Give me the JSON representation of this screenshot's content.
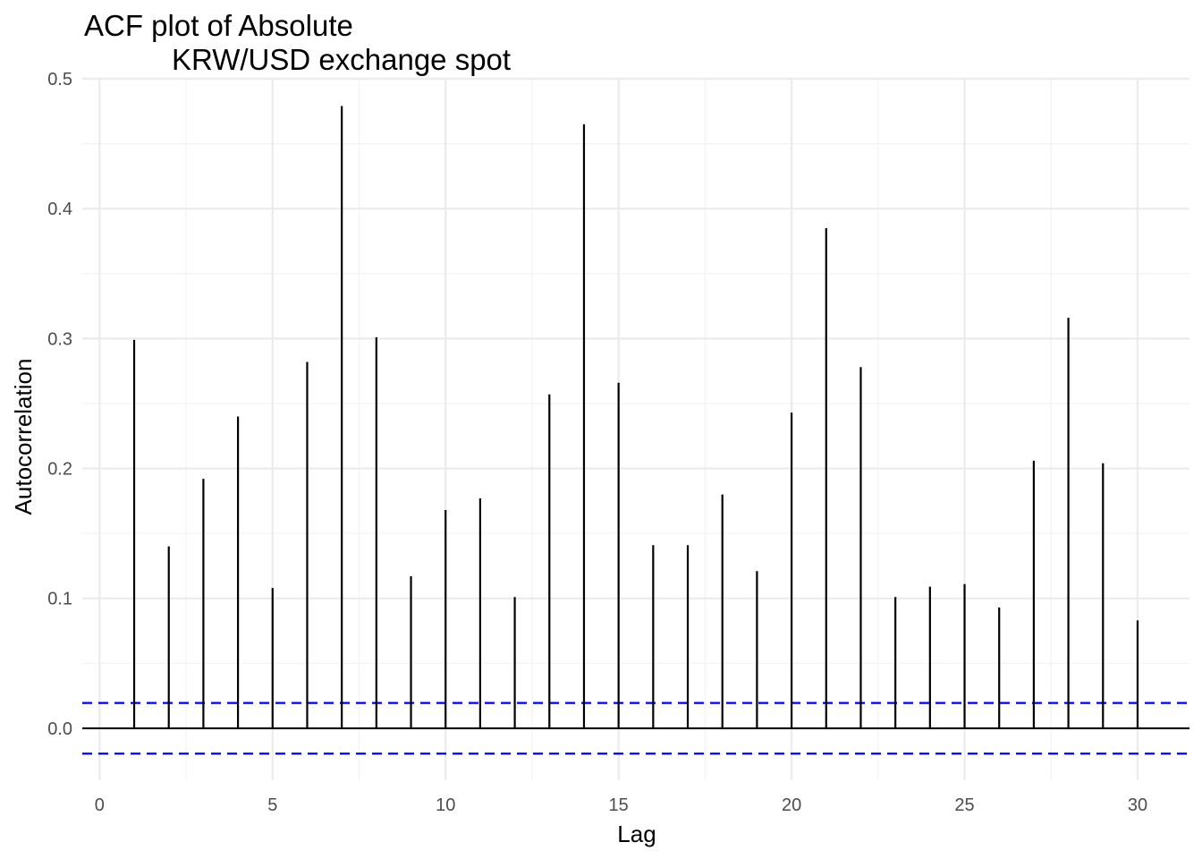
{
  "chart_data": {
    "type": "bar",
    "title_lines": [
      "ACF plot of Absolute",
      "KRW/USD exchange spot"
    ],
    "xlabel": "Lag",
    "ylabel": "Autocorrelation",
    "xlim": [
      -0.5,
      31.5
    ],
    "ylim": [
      -0.04,
      0.5
    ],
    "x_ticks": [
      0,
      5,
      10,
      15,
      20,
      25,
      30
    ],
    "y_ticks": [
      0.0,
      0.1,
      0.2,
      0.3,
      0.4,
      0.5
    ],
    "x_tick_labels": [
      "0",
      "5",
      "10",
      "15",
      "20",
      "25",
      "30"
    ],
    "y_tick_labels": [
      "0.0",
      "0.1",
      "0.2",
      "0.3",
      "0.4",
      "0.5"
    ],
    "lags": [
      1,
      2,
      3,
      4,
      5,
      6,
      7,
      8,
      9,
      10,
      11,
      12,
      13,
      14,
      15,
      16,
      17,
      18,
      19,
      20,
      21,
      22,
      23,
      24,
      25,
      26,
      27,
      28,
      29,
      30
    ],
    "values": [
      0.299,
      0.14,
      0.192,
      0.24,
      0.108,
      0.282,
      0.479,
      0.301,
      0.117,
      0.168,
      0.177,
      0.101,
      0.257,
      0.465,
      0.266,
      0.141,
      0.141,
      0.18,
      0.121,
      0.243,
      0.385,
      0.278,
      0.101,
      0.109,
      0.111,
      0.093,
      0.206,
      0.316,
      0.204,
      0.083
    ],
    "confidence_bound": 0.0195,
    "grid": true,
    "colors": {
      "bars": "#000000",
      "confidence_lines": "#0000ee",
      "grid_major": "#ebebeb",
      "grid_minor": "#f3f3f3"
    }
  }
}
